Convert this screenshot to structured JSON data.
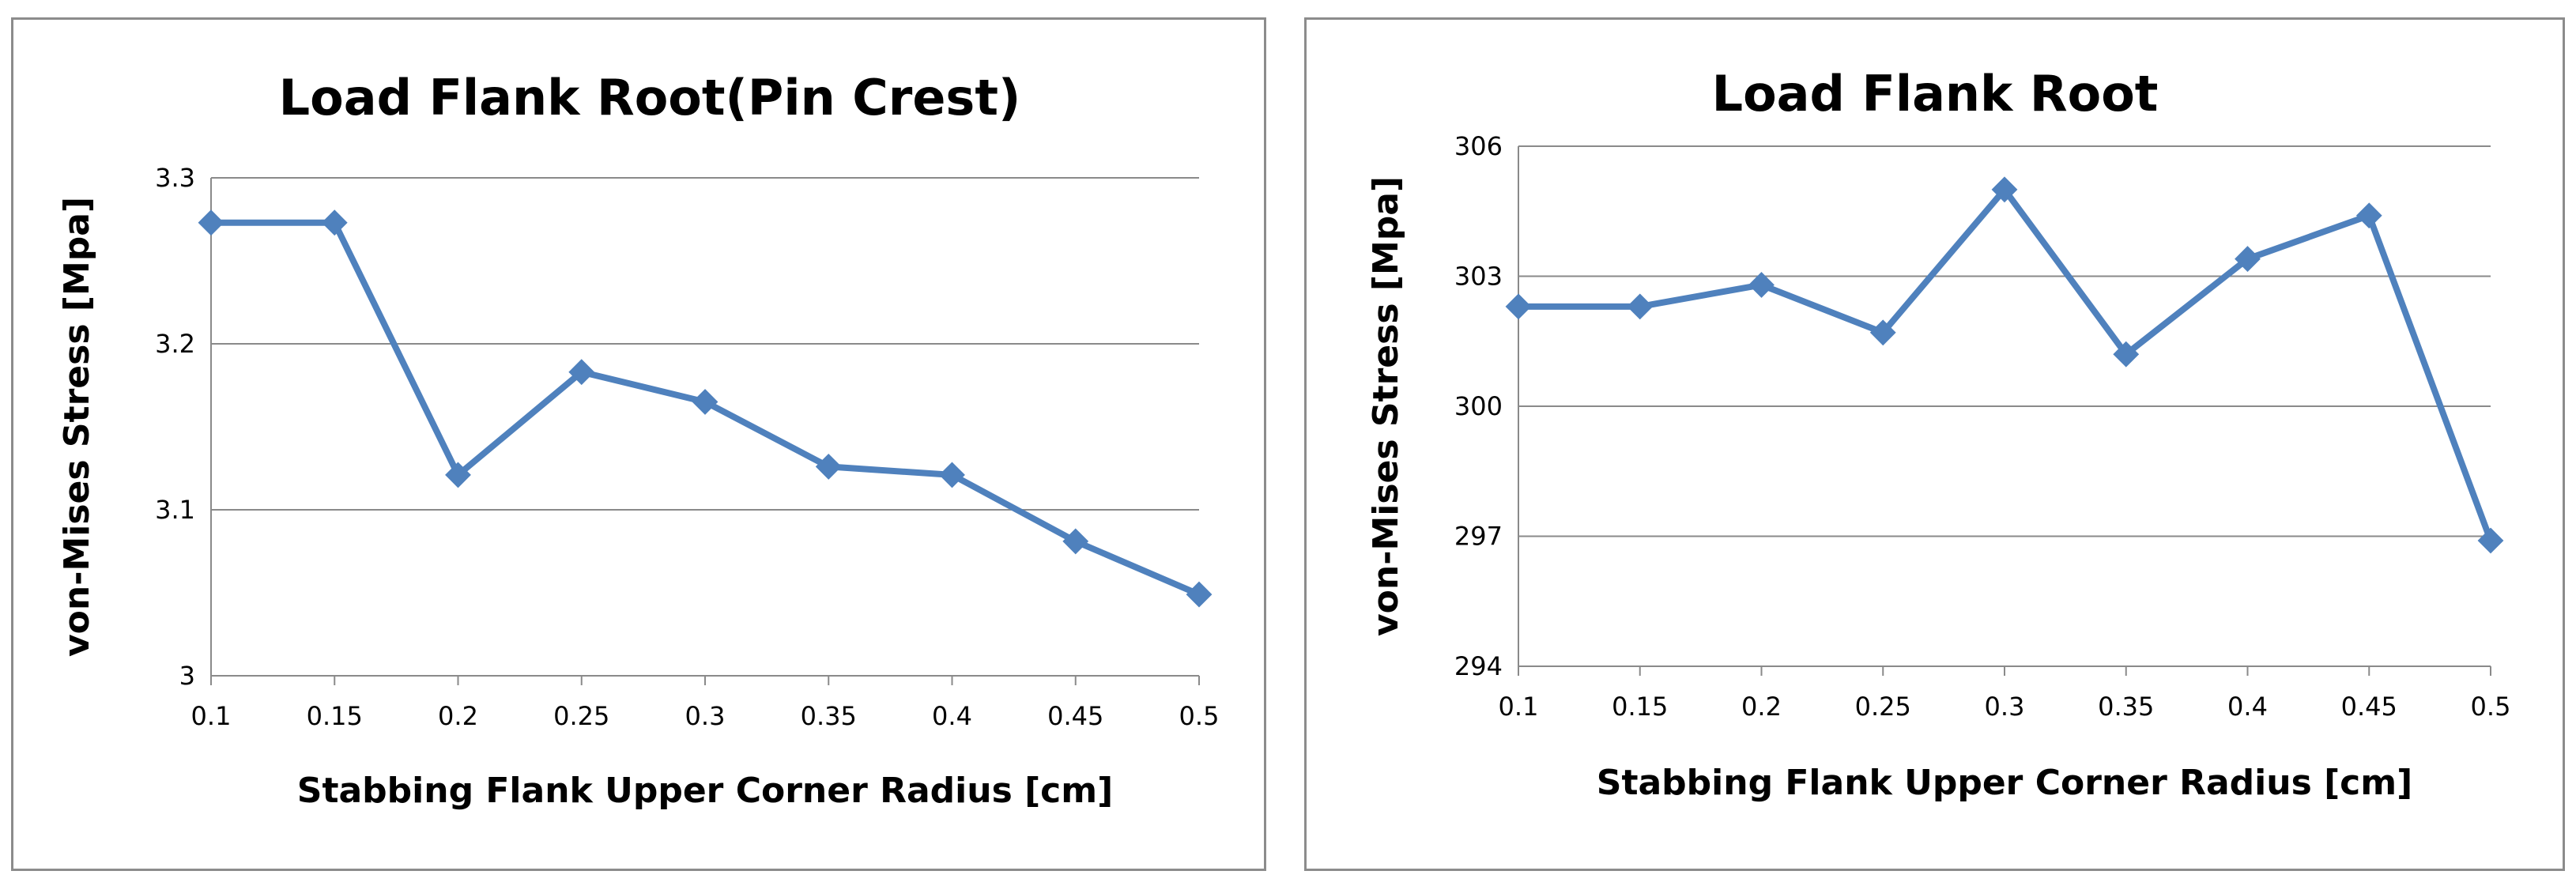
{
  "chart_data": [
    {
      "type": "line",
      "title": "Load Flank Root(Pin Crest)",
      "xlabel": "Stabbing Flank Upper Corner Radius [cm]",
      "ylabel": "von-Mises Stress [Mpa]",
      "x": [
        "0.1",
        "0.15",
        "0.2",
        "0.25",
        "0.3",
        "0.35",
        "0.4",
        "0.45",
        "0.5"
      ],
      "series": [
        {
          "name": "Load Flank Root(Pin Crest)",
          "values": [
            3.273,
            3.273,
            3.121,
            3.183,
            3.165,
            3.126,
            3.121,
            3.081,
            3.049
          ]
        }
      ],
      "ylim": [
        3,
        3.3
      ],
      "yticks": [
        "3",
        "3.1",
        "3.2",
        "3.3"
      ],
      "grid": true,
      "color": "#4f81bd"
    },
    {
      "type": "line",
      "title": "Load Flank Root",
      "xlabel": "Stabbing Flank Upper Corner Radius [cm]",
      "ylabel": "von-Mises Stress [Mpa]",
      "x": [
        "0.1",
        "0.15",
        "0.2",
        "0.25",
        "0.3",
        "0.35",
        "0.4",
        "0.45",
        "0.5"
      ],
      "series": [
        {
          "name": "Load Flank Root",
          "values": [
            302.3,
            302.3,
            302.8,
            301.7,
            305.0,
            301.2,
            303.4,
            304.4,
            296.9
          ]
        }
      ],
      "ylim": [
        294,
        306
      ],
      "yticks": [
        "294",
        "297",
        "300",
        "303",
        "306"
      ],
      "grid": true,
      "color": "#4f81bd"
    }
  ]
}
